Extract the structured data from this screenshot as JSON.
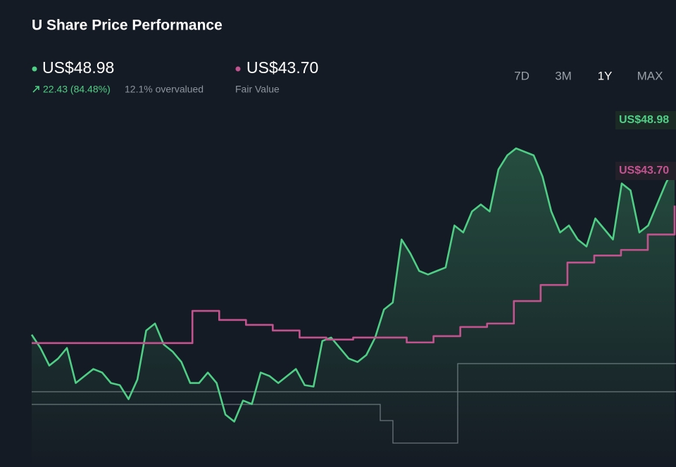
{
  "header": {
    "title": "U Share Price Performance"
  },
  "summary": {
    "price": "US$48.98",
    "change": "22.43 (84.48%)",
    "valuation": "12.1% overvalued",
    "fair_value": "US$43.70",
    "fair_value_caption": "Fair Value"
  },
  "tabs": [
    "7D",
    "3M",
    "1Y",
    "MAX"
  ],
  "active_tab": 2,
  "chart_data": {
    "type": "line",
    "ylim": [
      9,
      57
    ],
    "series": [
      {
        "color": "#4fcf85",
        "fill": true,
        "values": [
          26.57,
          24.8,
          22.47,
          23.4,
          24.8,
          20.15,
          21.08,
          22.01,
          21.54,
          20.15,
          19.87,
          18.01,
          20.61,
          27.12,
          28.05,
          25.26,
          24.33,
          22.94,
          20.15,
          20.15,
          21.54,
          20.15,
          15.96,
          15.03,
          17.82,
          17.36,
          21.54,
          21.08,
          20.15,
          21.08,
          22.01,
          19.87,
          19.68,
          25.73,
          26.19,
          24.8,
          23.4,
          22.94,
          23.87,
          26.19,
          29.91,
          30.84,
          39.21,
          37.35,
          35.03,
          34.56,
          35.03,
          35.49,
          41.07,
          40.14,
          42.93,
          43.86,
          42.93,
          48.51,
          50.38,
          51.31,
          50.84,
          50.38,
          47.58,
          42.93,
          40.14,
          41.07,
          39.21,
          38.28,
          42.0,
          40.61,
          39.21,
          46.65,
          45.72,
          40.14,
          41.07,
          43.86,
          46.65,
          48.98
        ]
      },
      {
        "name": "Fair Value",
        "color": "#c2538e",
        "step": true,
        "values": [
          25.45,
          25.45,
          25.45,
          25.45,
          25.45,
          25.45,
          29.73,
          28.52,
          27.87,
          27.12,
          26.19,
          25.92,
          26.19,
          26.19,
          25.54,
          26.38,
          27.59,
          28.05,
          31.03,
          33.17,
          36.15,
          37.08,
          37.82,
          39.87,
          43.7
        ]
      }
    ]
  }
}
